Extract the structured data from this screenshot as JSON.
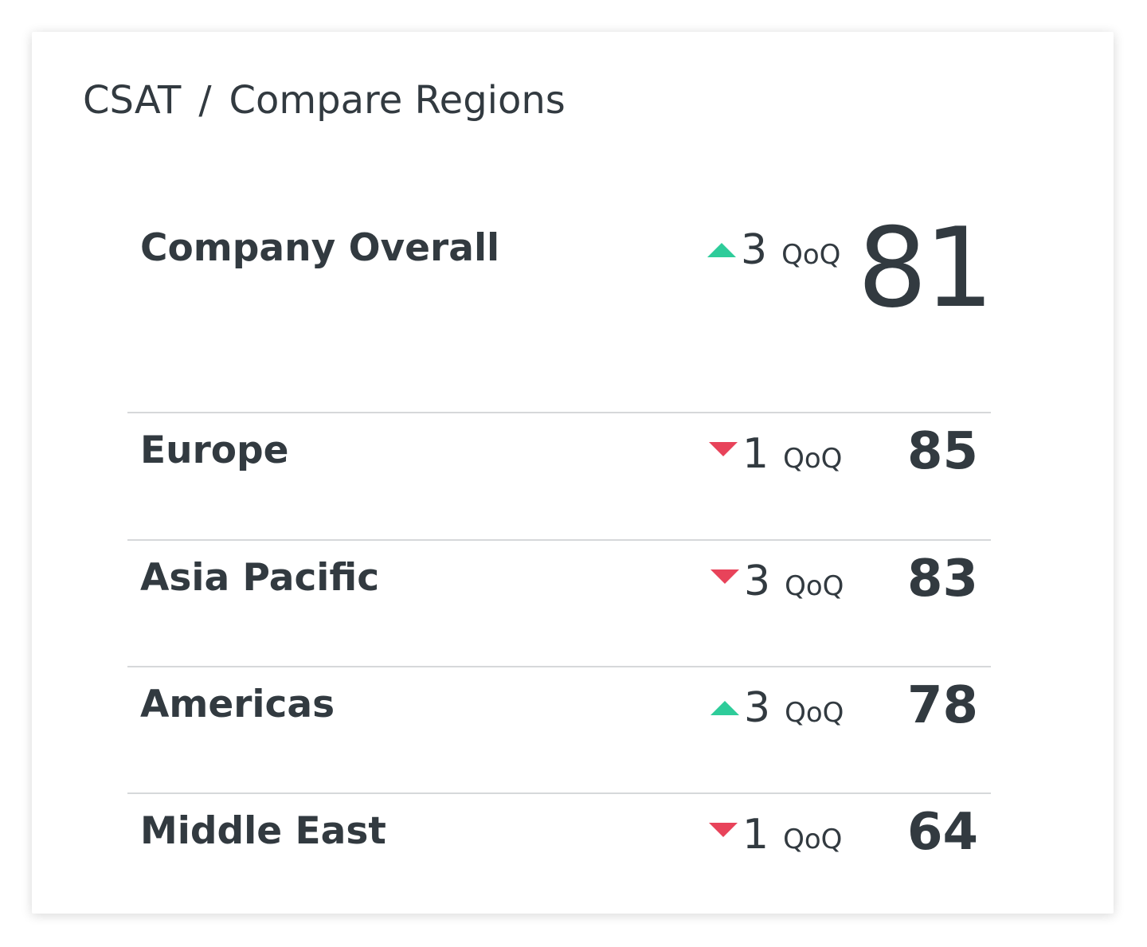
{
  "breadcrumb": {
    "root": "CSAT",
    "separator": "/",
    "current": "Compare Regions"
  },
  "overall": {
    "label": "Company Overall",
    "trend": "up",
    "delta": "3",
    "delta_unit": "QoQ",
    "score": "81"
  },
  "regions": [
    {
      "label": "Europe",
      "trend": "down",
      "delta": "1",
      "delta_unit": "QoQ",
      "score": "85"
    },
    {
      "label": "Asia Pacific",
      "trend": "down",
      "delta": "3",
      "delta_unit": "QoQ",
      "score": "83"
    },
    {
      "label": "Americas",
      "trend": "up",
      "delta": "3",
      "delta_unit": "QoQ",
      "score": "78"
    },
    {
      "label": "Middle East",
      "trend": "down",
      "delta": "1",
      "delta_unit": "QoQ",
      "score": "64"
    }
  ],
  "colors": {
    "text": "#323a40",
    "up": "#2ecc9a",
    "down": "#e8435a",
    "divider": "#d6d8da"
  },
  "icons": {
    "up": "triangle-up-icon",
    "down": "triangle-down-icon"
  }
}
